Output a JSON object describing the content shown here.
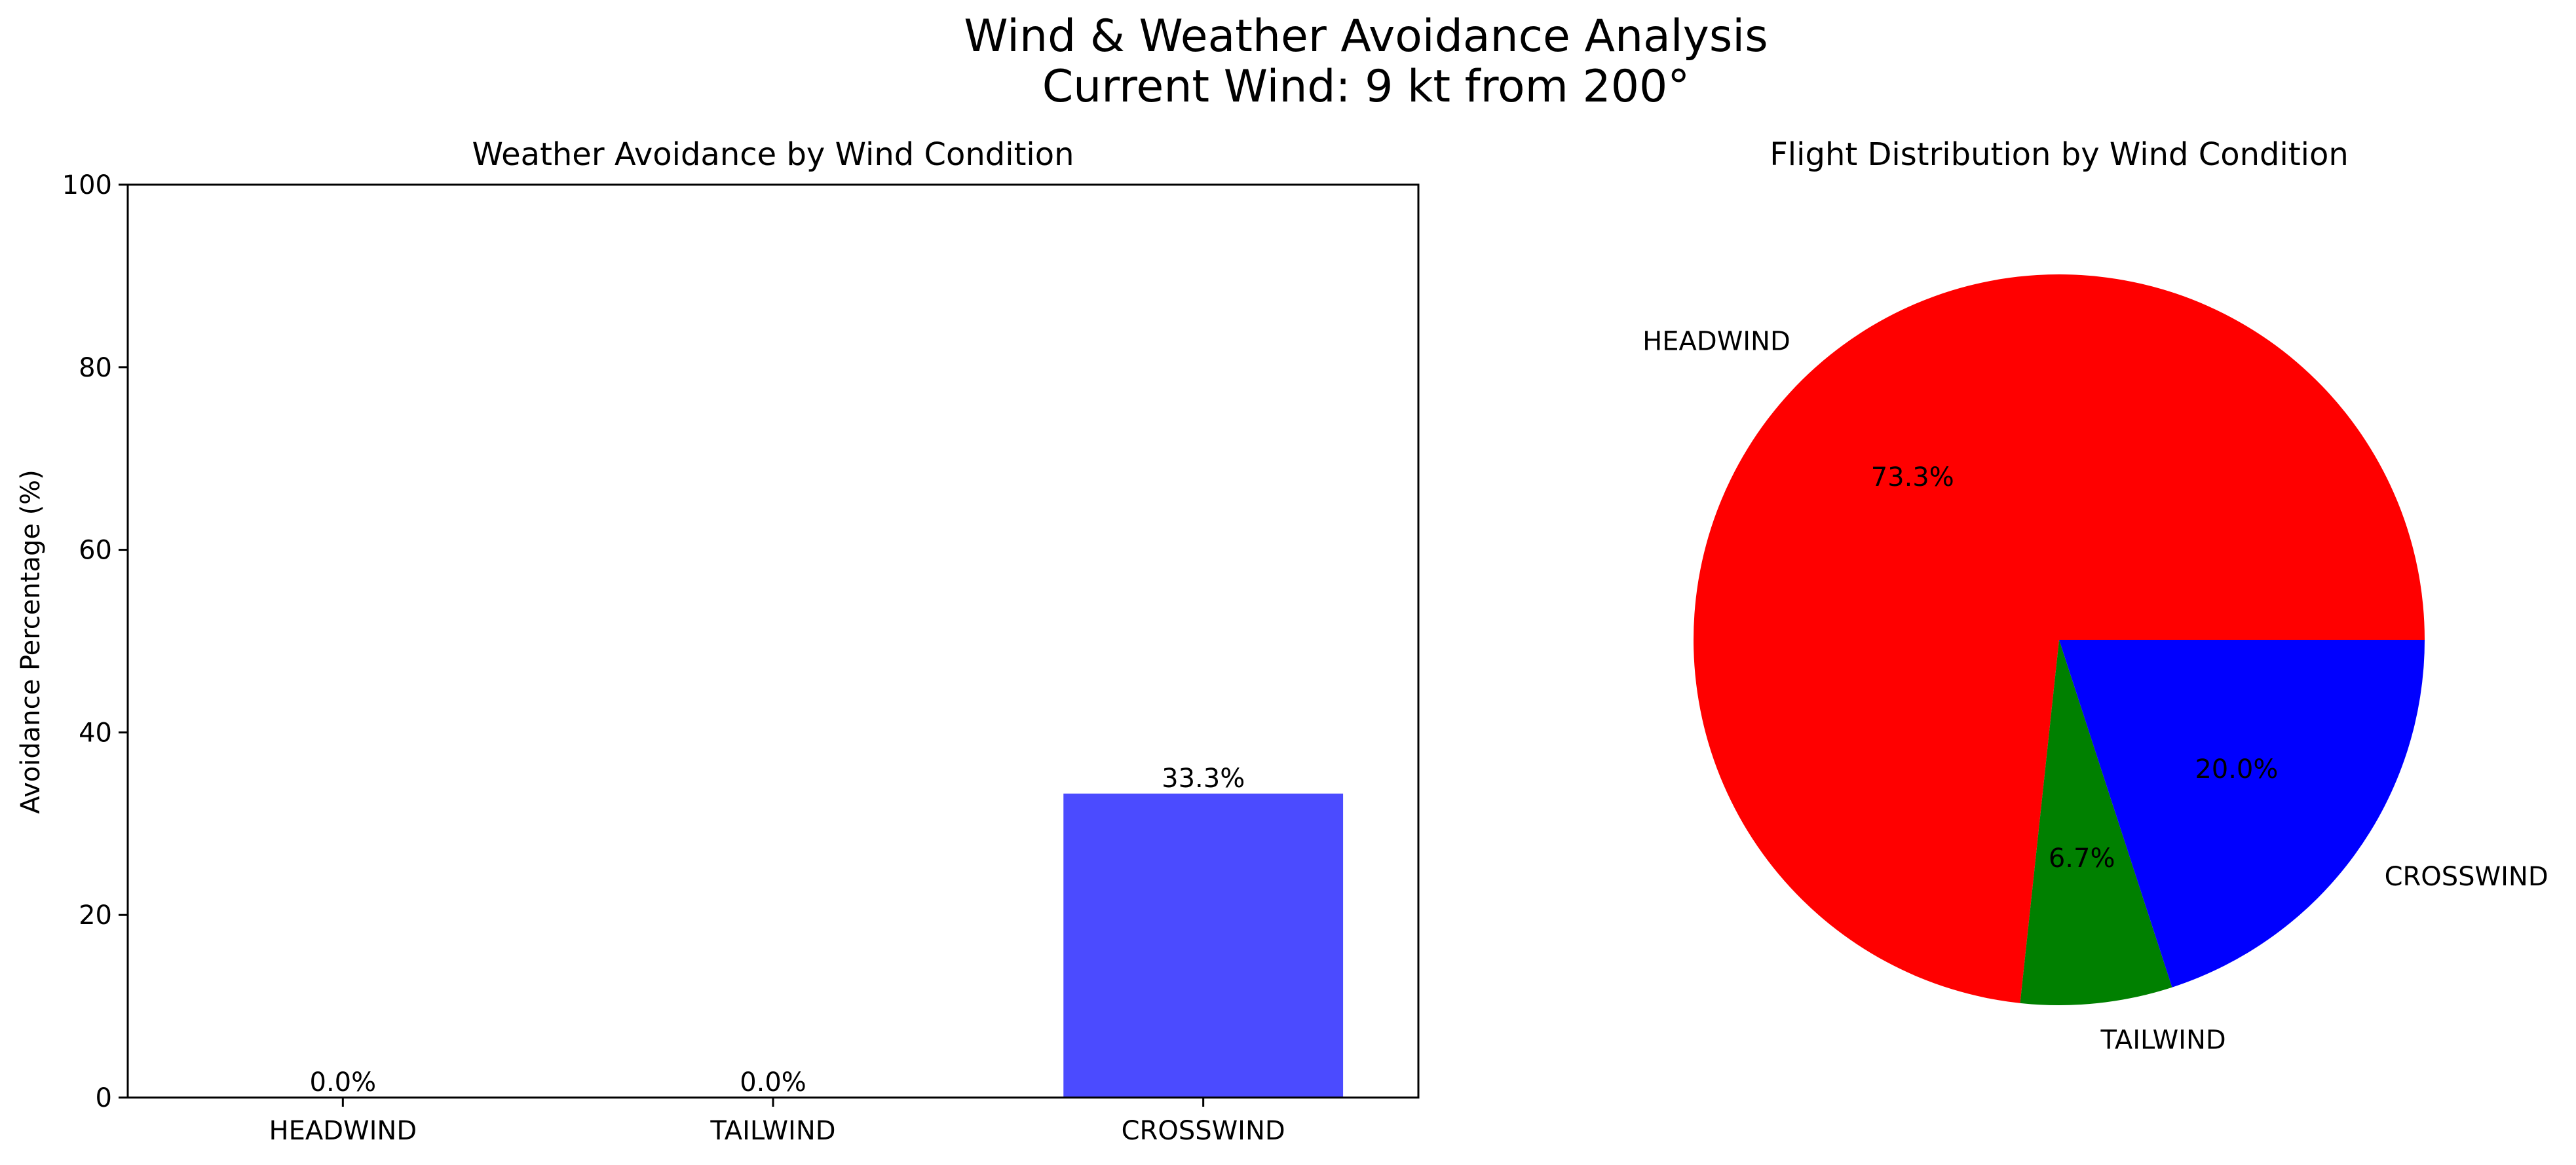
{
  "figure": {
    "title_line1": "Wind & Weather Avoidance Analysis",
    "title_line2": "Current Wind: 9 kt from 200°"
  },
  "chart_data": [
    {
      "type": "bar",
      "title": "Weather Avoidance by Wind Condition",
      "xlabel": "",
      "ylabel": "Avoidance Percentage (%)",
      "categories": [
        "HEADWIND",
        "TAILWIND",
        "CROSSWIND"
      ],
      "values": [
        0.0,
        0.0,
        33.3
      ],
      "value_labels": [
        "0.0%",
        "0.0%",
        "33.3%"
      ],
      "colors": [
        "#4b4bff",
        "#4b4bff",
        "#4b4bff"
      ],
      "ylim": [
        0,
        100
      ],
      "yticks": [
        0,
        20,
        40,
        60,
        80,
        100
      ],
      "grid": false
    },
    {
      "type": "pie",
      "title": "Flight Distribution by Wind Condition",
      "labels": [
        "HEADWIND",
        "TAILWIND",
        "CROSSWIND"
      ],
      "values": [
        73.3,
        6.7,
        20.0
      ],
      "pct_labels": [
        "73.3%",
        "6.7%",
        "20.0%"
      ],
      "colors": [
        "#ff0000",
        "#008000",
        "#0000ff"
      ]
    }
  ]
}
